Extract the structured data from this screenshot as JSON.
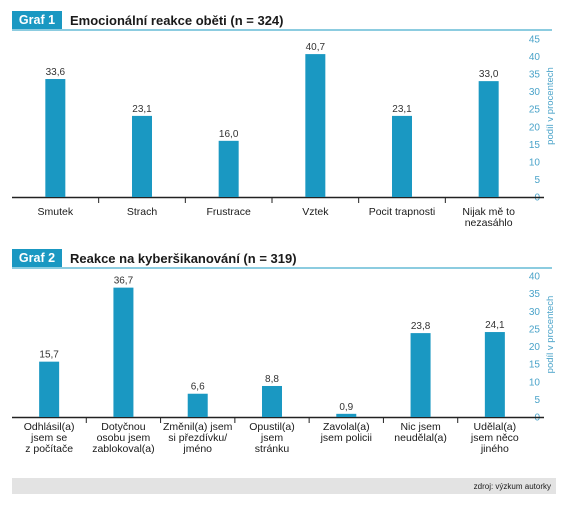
{
  "colors": {
    "accent": "#1a98c2",
    "badge": "#1a98c2",
    "bar": "#1a98c2",
    "axis_text": "#4aa3c9",
    "grid": "#8fcbe2",
    "footer": "#e3e3e3"
  },
  "chart_data": [
    {
      "type": "bar",
      "badge": "Graf 1",
      "title": "Emocionální reakce oběti (n = 324)",
      "ylabel": "podíl v procentech",
      "ylim": [
        0,
        45
      ],
      "yticks": [
        0,
        5,
        10,
        15,
        20,
        25,
        30,
        35,
        40,
        45
      ],
      "categories": [
        [
          "Smutek"
        ],
        [
          "Strach"
        ],
        [
          "Frustrace"
        ],
        [
          "Vztek"
        ],
        [
          "Pocit trapnosti"
        ],
        [
          "Nijak mě to",
          "nezasáhlo"
        ]
      ],
      "values": [
        33.6,
        23.1,
        16.0,
        40.7,
        23.1,
        33.0
      ],
      "value_labels": [
        "33,6",
        "23,1",
        "16,0",
        "40,7",
        "23,1",
        "33,0"
      ]
    },
    {
      "type": "bar",
      "badge": "Graf 2",
      "title": "Reakce na kyberšikanování (n = 319)",
      "ylabel": "podíl v procentech",
      "ylim": [
        0,
        40
      ],
      "yticks": [
        0,
        5,
        10,
        15,
        20,
        25,
        30,
        35,
        40
      ],
      "categories": [
        [
          "Odhlásil(a)",
          "jsem se",
          "z počítače"
        ],
        [
          "Dotyčnou",
          "osobu jsem",
          "zablokoval(a)"
        ],
        [
          "Změnil(a) jsem",
          "si přezdívku/",
          "jméno"
        ],
        [
          "Opustil(a)",
          "jsem",
          "stránku"
        ],
        [
          "Zavolal(a)",
          "jsem policii"
        ],
        [
          "Nic jsem",
          "neudělal(a)"
        ],
        [
          "Udělal(a)",
          "jsem něco",
          "jiného"
        ]
      ],
      "values": [
        15.7,
        36.7,
        6.6,
        8.8,
        0.9,
        23.8,
        24.1
      ],
      "value_labels": [
        "15,7",
        "36,7",
        "6,6",
        "8,8",
        "0,9",
        "23,8",
        "24,1"
      ]
    }
  ],
  "source": "zdroj: výzkum autorky"
}
